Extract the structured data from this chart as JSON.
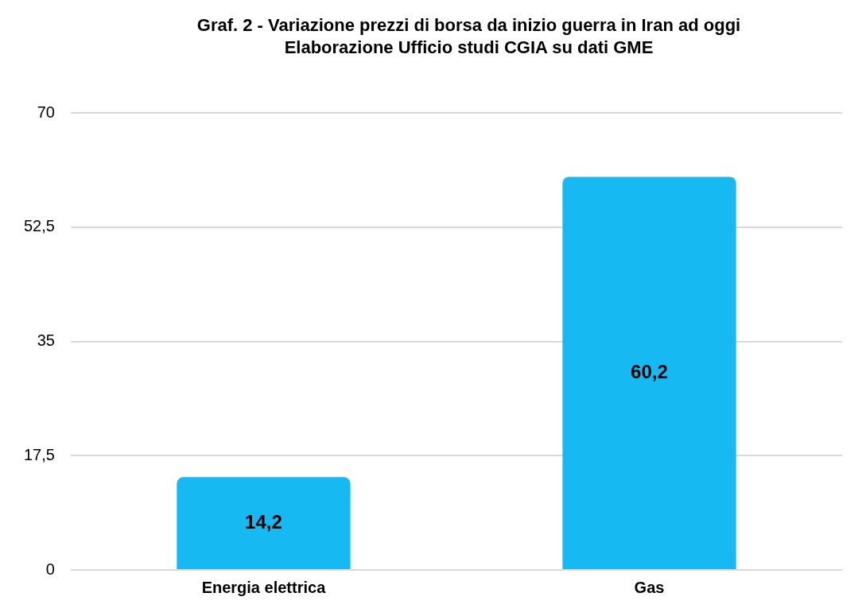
{
  "chart_data": {
    "type": "bar",
    "title": "Graf. 2 - Variazione prezzi di borsa da inizio guerra in Iran ad oggi",
    "subtitle": "Elaborazione Ufficio studi CGIA su dati GME",
    "categories": [
      "Energia elettrica",
      "Gas"
    ],
    "values": [
      14.2,
      60.2
    ],
    "value_labels": [
      "14,2",
      "60,2"
    ],
    "color": "#16b9f2",
    "ylim": [
      0,
      70
    ],
    "yticks": [
      0,
      {
        "value": 17.5,
        "label": "17,5"
      },
      35,
      {
        "value": 52.5,
        "label": "52,5"
      },
      70
    ],
    "grid": "y",
    "legend": false
  }
}
